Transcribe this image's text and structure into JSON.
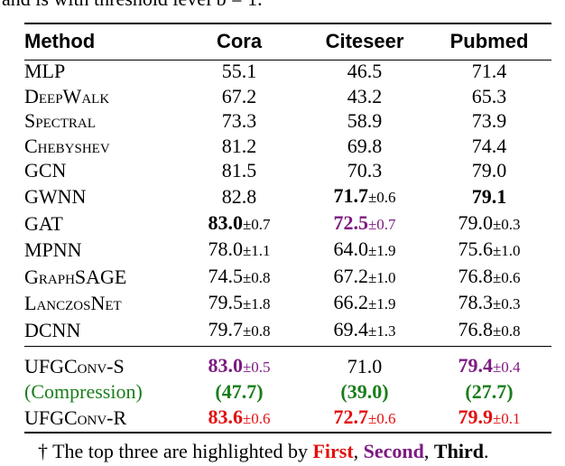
{
  "caption_fragment": "and is with threshold level b = 1.",
  "columns": [
    "Method",
    "Cora",
    "Citeseer",
    "Pubmed"
  ],
  "rows": [
    {
      "method": "MLP",
      "cora": "55.1",
      "cora_pm": "",
      "citeseer": "46.5",
      "citeseer_pm": "",
      "pubmed": "71.4",
      "pubmed_pm": ""
    },
    {
      "method": "DeepWalk",
      "cora": "67.2",
      "cora_pm": "",
      "citeseer": "43.2",
      "citeseer_pm": "",
      "pubmed": "65.3",
      "pubmed_pm": ""
    },
    {
      "method": "Spectral",
      "cora": "73.3",
      "cora_pm": "",
      "citeseer": "58.9",
      "citeseer_pm": "",
      "pubmed": "73.9",
      "pubmed_pm": ""
    },
    {
      "method": "Chebyshev",
      "cora": "81.2",
      "cora_pm": "",
      "citeseer": "69.8",
      "citeseer_pm": "",
      "pubmed": "74.4",
      "pubmed_pm": ""
    },
    {
      "method": "GCN",
      "cora": "81.5",
      "cora_pm": "",
      "citeseer": "70.3",
      "citeseer_pm": "",
      "pubmed": "79.0",
      "pubmed_pm": ""
    },
    {
      "method": "GWNN",
      "cora": "82.8",
      "cora_pm": "",
      "citeseer": "71.7",
      "citeseer_pm": "±0.6",
      "pubmed": "79.1",
      "pubmed_pm": ""
    },
    {
      "method": "GAT",
      "cora": "83.0",
      "cora_pm": "±0.7",
      "citeseer": "72.5",
      "citeseer_pm": "±0.7",
      "pubmed": "79.0",
      "pubmed_pm": "±0.3"
    },
    {
      "method": "MPNN",
      "cora": "78.0",
      "cora_pm": "±1.1",
      "citeseer": "64.0",
      "citeseer_pm": "±1.9",
      "pubmed": "75.6",
      "pubmed_pm": "±1.0"
    },
    {
      "method": "GraphSAGE",
      "cora": "74.5",
      "cora_pm": "±0.8",
      "citeseer": "67.2",
      "citeseer_pm": "±1.0",
      "pubmed": "76.8",
      "pubmed_pm": "±0.6"
    },
    {
      "method": "LanczosNet",
      "cora": "79.5",
      "cora_pm": "±1.8",
      "citeseer": "66.2",
      "citeseer_pm": "±1.9",
      "pubmed": "78.3",
      "pubmed_pm": "±0.3"
    },
    {
      "method": "DCNN",
      "cora": "79.7",
      "cora_pm": "±0.8",
      "citeseer": "69.4",
      "citeseer_pm": "±1.3",
      "pubmed": "76.8",
      "pubmed_pm": "±0.8"
    }
  ],
  "ufg_rows": [
    {
      "method": "UFGConv-S",
      "cora": "83.0",
      "cora_pm": "±0.5",
      "citeseer": "71.0",
      "citeseer_pm": "",
      "pubmed": "79.4",
      "pubmed_pm": "±0.4"
    },
    {
      "method": "(Compression)",
      "cora": "(47.7)",
      "cora_pm": "",
      "citeseer": "(39.0)",
      "citeseer_pm": "",
      "pubmed": "(27.7)",
      "pubmed_pm": ""
    },
    {
      "method": "UFGConv-R",
      "cora": "83.6",
      "cora_pm": "±0.6",
      "citeseer": "72.7",
      "citeseer_pm": "±0.6",
      "pubmed": "79.9",
      "pubmed_pm": "±0.1"
    }
  ],
  "footnote": {
    "prefix": "† The top three are highlighted by ",
    "first": "First",
    "sep1": ", ",
    "second": "Second",
    "sep2": ", ",
    "third": "Third",
    "end": "."
  },
  "colors": {
    "first": "#e3100f",
    "second": "#7d1a82",
    "compression": "#1a7d1a"
  }
}
